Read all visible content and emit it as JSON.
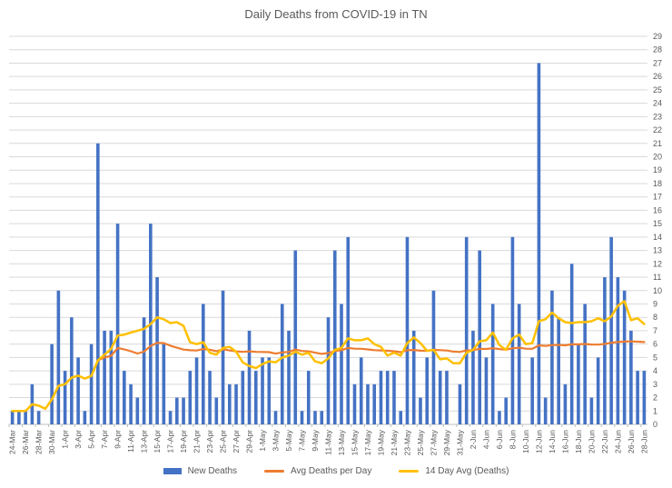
{
  "title": "Daily Deaths from COVID-19 in TN",
  "legend": {
    "new_deaths": "New Deaths",
    "avg_deaths": "Avg Deaths per Day",
    "rolling_avg": "14 Day Avg (Deaths)"
  },
  "colors": {
    "bar": "#4472C4",
    "avg_line": "#ED7D31",
    "rolling_line": "#FFC000",
    "grid": "#D9D9D9",
    "axis": "#BFBFBF",
    "text": "#595959"
  },
  "chart_data": {
    "type": "bar",
    "title": "Daily Deaths from COVID-19 in TN",
    "xlabel": "",
    "ylabel": "",
    "ylim": [
      0,
      29
    ],
    "grid": true,
    "y_axis_side": "right",
    "legend_position": "bottom",
    "categories": [
      "24-Mar",
      "25-Mar",
      "26-Mar",
      "27-Mar",
      "28-Mar",
      "29-Mar",
      "30-Mar",
      "31-Mar",
      "1-Apr",
      "2-Apr",
      "3-Apr",
      "4-Apr",
      "5-Apr",
      "6-Apr",
      "7-Apr",
      "8-Apr",
      "9-Apr",
      "10-Apr",
      "11-Apr",
      "12-Apr",
      "13-Apr",
      "14-Apr",
      "15-Apr",
      "16-Apr",
      "17-Apr",
      "18-Apr",
      "19-Apr",
      "20-Apr",
      "21-Apr",
      "22-Apr",
      "23-Apr",
      "24-Apr",
      "25-Apr",
      "26-Apr",
      "27-Apr",
      "28-Apr",
      "29-Apr",
      "30-Apr",
      "1-May",
      "2-May",
      "3-May",
      "4-May",
      "5-May",
      "6-May",
      "7-May",
      "8-May",
      "9-May",
      "10-May",
      "11-May",
      "12-May",
      "13-May",
      "14-May",
      "15-May",
      "16-May",
      "17-May",
      "18-May",
      "19-May",
      "20-May",
      "21-May",
      "22-May",
      "23-May",
      "24-May",
      "25-May",
      "26-May",
      "27-May",
      "28-May",
      "29-May",
      "30-May",
      "31-May",
      "1-Jun",
      "2-Jun",
      "3-Jun",
      "4-Jun",
      "5-Jun",
      "6-Jun",
      "7-Jun",
      "8-Jun",
      "9-Jun",
      "10-Jun",
      "11-Jun",
      "12-Jun",
      "13-Jun",
      "14-Jun",
      "15-Jun",
      "16-Jun",
      "17-Jun",
      "18-Jun",
      "19-Jun",
      "20-Jun",
      "21-Jun",
      "22-Jun",
      "23-Jun",
      "24-Jun",
      "25-Jun",
      "26-Jun",
      "27-Jun",
      "28-Jun"
    ],
    "x_tick_labels": [
      "24-Mar",
      "26-Mar",
      "28-Mar",
      "30-Mar",
      "1-Apr",
      "3-Apr",
      "5-Apr",
      "7-Apr",
      "9-Apr",
      "11-Apr",
      "13-Apr",
      "15-Apr",
      "17-Apr",
      "19-Apr",
      "21-Apr",
      "23-Apr",
      "25-Apr",
      "27-Apr",
      "29-Apr",
      "1-May",
      "3-May",
      "5-May",
      "7-May",
      "9-May",
      "11-May",
      "13-May",
      "15-May",
      "17-May",
      "19-May",
      "21-May",
      "23-May",
      "25-May",
      "27-May",
      "29-May",
      "31-May",
      "2-Jun",
      "4-Jun",
      "6-Jun",
      "8-Jun",
      "10-Jun",
      "12-Jun",
      "14-Jun",
      "16-Jun",
      "18-Jun",
      "20-Jun",
      "22-Jun",
      "24-Jun",
      "26-Jun",
      "28-Jun"
    ],
    "y_ticks": [
      0,
      1,
      2,
      3,
      4,
      5,
      6,
      7,
      8,
      9,
      10,
      11,
      12,
      13,
      14,
      15,
      16,
      17,
      18,
      19,
      20,
      21,
      22,
      23,
      24,
      25,
      26,
      27,
      28,
      29
    ],
    "series": [
      {
        "name": "New Deaths",
        "type": "bar",
        "color": "#4472C4",
        "values": [
          1,
          1,
          1,
          3,
          1,
          0,
          6,
          10,
          4,
          8,
          5,
          1,
          6,
          21,
          7,
          7,
          15,
          4,
          3,
          2,
          8,
          15,
          11,
          6,
          1,
          2,
          2,
          4,
          5,
          9,
          4,
          2,
          10,
          3,
          3,
          4,
          7,
          4,
          5,
          5,
          1,
          9,
          7,
          13,
          1,
          4,
          1,
          1,
          8,
          13,
          9,
          14,
          3,
          5,
          3,
          3,
          4,
          4,
          4,
          1,
          14,
          7,
          2,
          5,
          10,
          4,
          4,
          0,
          3,
          14,
          7,
          13,
          5,
          9,
          1,
          2,
          14,
          9,
          0,
          5,
          27,
          2,
          10,
          8,
          3,
          12,
          6,
          9,
          2,
          5,
          11,
          14,
          11,
          10,
          7,
          4,
          4
        ]
      },
      {
        "name": "Avg Deaths per Day",
        "type": "line",
        "color": "#ED7D31",
        "values": [
          1,
          1,
          1,
          1.5,
          1.4,
          1.17,
          1.86,
          2.88,
          3,
          3.5,
          3.64,
          3.42,
          3.62,
          4.79,
          5,
          5.13,
          5.71,
          5.61,
          5.47,
          5.3,
          5.43,
          5.86,
          6.09,
          6.08,
          5.88,
          5.73,
          5.59,
          5.54,
          5.52,
          5.63,
          5.58,
          5.47,
          5.61,
          5.53,
          5.46,
          5.42,
          5.46,
          5.42,
          5.41,
          5.4,
          5.29,
          5.38,
          5.42,
          5.59,
          5.49,
          5.46,
          5.36,
          5.27,
          5.33,
          5.48,
          5.55,
          5.71,
          5.66,
          5.65,
          5.6,
          5.55,
          5.53,
          5.5,
          5.47,
          5.4,
          5.54,
          5.56,
          5.51,
          5.5,
          5.57,
          5.55,
          5.52,
          5.44,
          5.41,
          5.53,
          5.55,
          5.65,
          5.64,
          5.69,
          5.63,
          5.58,
          5.69,
          5.73,
          5.66,
          5.65,
          5.91,
          5.87,
          5.92,
          5.94,
          5.91,
          5.98,
          5.98,
          6.01,
          5.97,
          5.96,
          6.01,
          6.1,
          6.15,
          6.19,
          6.2,
          6.18,
          6.15
        ]
      },
      {
        "name": "14 Day Avg (Deaths)",
        "type": "line",
        "color": "#FFC000",
        "values": [
          1,
          1,
          1,
          1.5,
          1.4,
          1.17,
          1.86,
          2.88,
          3,
          3.5,
          3.64,
          3.42,
          3.62,
          4.79,
          5.21,
          5.64,
          6.64,
          6.71,
          6.86,
          7,
          7.14,
          7.5,
          8,
          7.86,
          7.57,
          7.64,
          7.36,
          6.14,
          6,
          6.14,
          5.36,
          5.21,
          5.71,
          5.79,
          5.43,
          4.64,
          4.36,
          4.21,
          4.5,
          4.71,
          4.64,
          5,
          5.14,
          5.43,
          5.21,
          5.36,
          4.71,
          4.57,
          4.93,
          5.57,
          5.71,
          6.43,
          6.29,
          6.29,
          6.43,
          6,
          5.79,
          5.14,
          5.36,
          5.14,
          6.07,
          6.5,
          6.07,
          5.5,
          5.57,
          4.86,
          4.93,
          4.57,
          4.57,
          5.36,
          5.57,
          6.21,
          6.29,
          6.86,
          5.93,
          5.57,
          6.43,
          6.71,
          6,
          6.07,
          7.71,
          7.86,
          8.36,
          7.93,
          7.64,
          7.57,
          7.64,
          7.64,
          7.71,
          7.93,
          7.71,
          8.07,
          8.86,
          9.21,
          7.79,
          7.93,
          7.5
        ]
      }
    ]
  }
}
